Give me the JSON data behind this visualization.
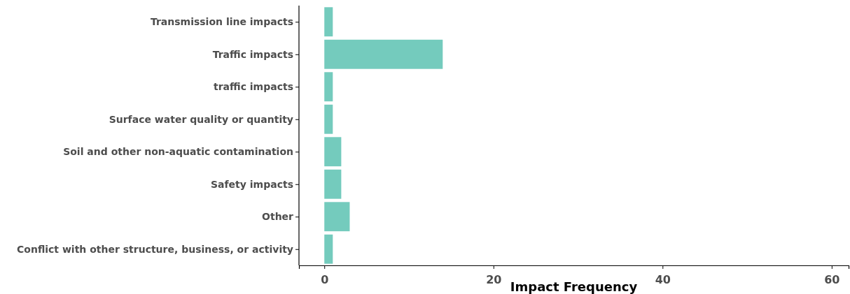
{
  "chart_data": {
    "type": "bar",
    "orientation": "horizontal",
    "xlabel": "Impact Frequency",
    "categories": [
      "Transmission line impacts",
      "Traffic impacts",
      "traffic impacts",
      "Surface water quality or quantity",
      "Soil and other non-aquatic contamination",
      "Safety impacts",
      "Other",
      "Conflict with other structure, business, or activity"
    ],
    "values": [
      1,
      14,
      1,
      1,
      2,
      2,
      3,
      1
    ],
    "color": "#74cbbd",
    "xlim": [
      -3,
      62
    ],
    "xticks": [
      0,
      20,
      40,
      60
    ],
    "grid": false
  }
}
